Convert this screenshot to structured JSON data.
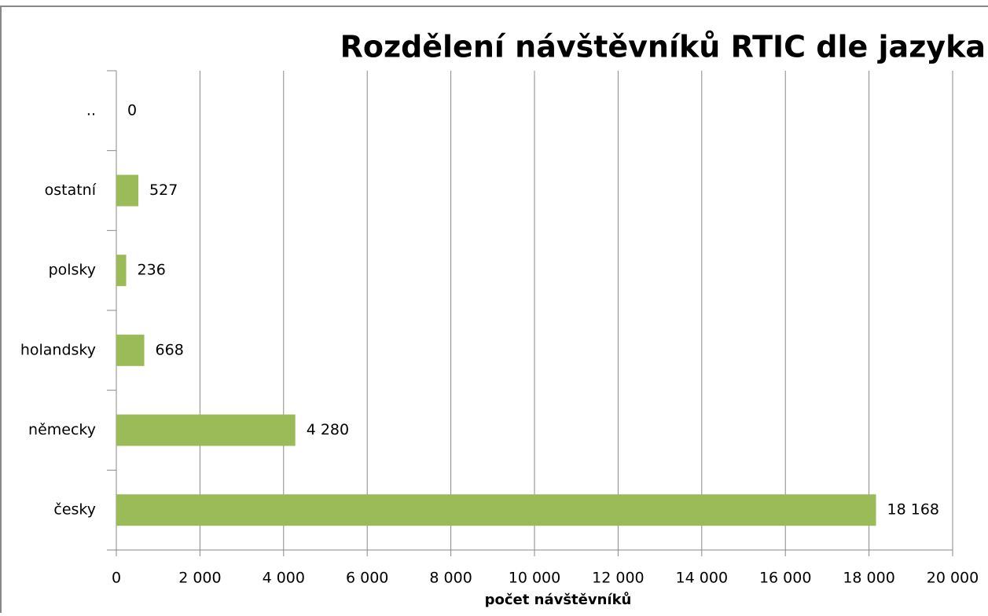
{
  "chart_data": {
    "type": "bar",
    "orientation": "horizontal",
    "title": "Rozdělení návštěvníků RTIC dle jazyka",
    "x_axis_label": "počet návštěvníků",
    "categories": [
      "česky",
      "německy",
      "holandsky",
      "polsky",
      "ostatní",
      ".."
    ],
    "values": [
      18168,
      4280,
      668,
      236,
      527,
      0
    ],
    "value_labels": [
      "18 168",
      "4 280",
      "668",
      "236",
      "527",
      "0"
    ],
    "color": "#9bbb59",
    "xlim": [
      0,
      20000
    ],
    "xticks": [
      0,
      {
        "value": 2000,
        "label": "2 000"
      },
      {
        "value": 4000,
        "label": "4 000"
      },
      {
        "value": 6000,
        "label": "6 000"
      },
      {
        "value": 8000,
        "label": "8 000"
      },
      {
        "value": 10000,
        "label": "10 000"
      },
      {
        "value": 12000,
        "label": "12 000"
      },
      {
        "value": 14000,
        "label": "14 000"
      },
      {
        "value": 16000,
        "label": "16 000"
      },
      {
        "value": 18000,
        "label": "18 000"
      },
      {
        "value": 20000,
        "label": "20 000"
      }
    ],
    "grid": true
  }
}
